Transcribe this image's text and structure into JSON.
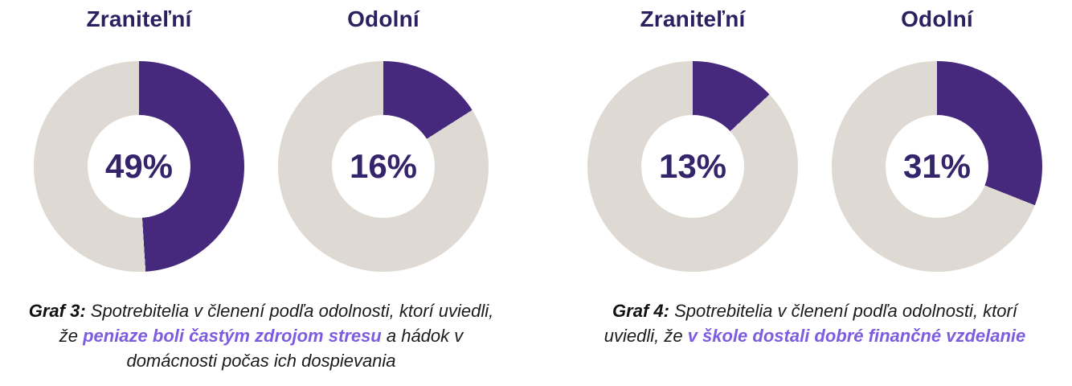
{
  "colors": {
    "background": "#ffffff",
    "donut_fill": "#46287c",
    "donut_track": "#dedad3",
    "title_text": "#2c2060",
    "percent_text": "#33246b",
    "caption_text": "#1b1b1b",
    "caption_highlight": "#7e5ce0"
  },
  "chart_data": [
    {
      "id": "graf-3",
      "type": "pie",
      "subtype": "donut",
      "legend_position": "none",
      "charts": [
        {
          "title": "Zraniteľní",
          "value_pct": 49,
          "remainder_pct": 51,
          "center_label": "49%"
        },
        {
          "title": "Odolní",
          "value_pct": 16,
          "remainder_pct": 84,
          "center_label": "16%"
        }
      ],
      "caption": {
        "prefix": "Graf 3:",
        "before_highlight": " Spotrebitelia v členení podľa odolnosti, ktorí uviedli, že ",
        "highlight": "peniaze boli častým zdrojom stresu",
        "after_highlight": " a hádok v domácnosti počas ich dospievania"
      }
    },
    {
      "id": "graf-4",
      "type": "pie",
      "subtype": "donut",
      "legend_position": "none",
      "charts": [
        {
          "title": "Zraniteľní",
          "value_pct": 13,
          "remainder_pct": 87,
          "center_label": "13%"
        },
        {
          "title": "Odolní",
          "value_pct": 31,
          "remainder_pct": 69,
          "center_label": "31%"
        }
      ],
      "caption": {
        "prefix": "Graf 4:",
        "before_highlight": " Spotrebitelia v členení podľa odolnosti, ktorí uviedli, že ",
        "highlight": "v škole dostali dobré finančné vzdelanie",
        "after_highlight": ""
      }
    }
  ]
}
